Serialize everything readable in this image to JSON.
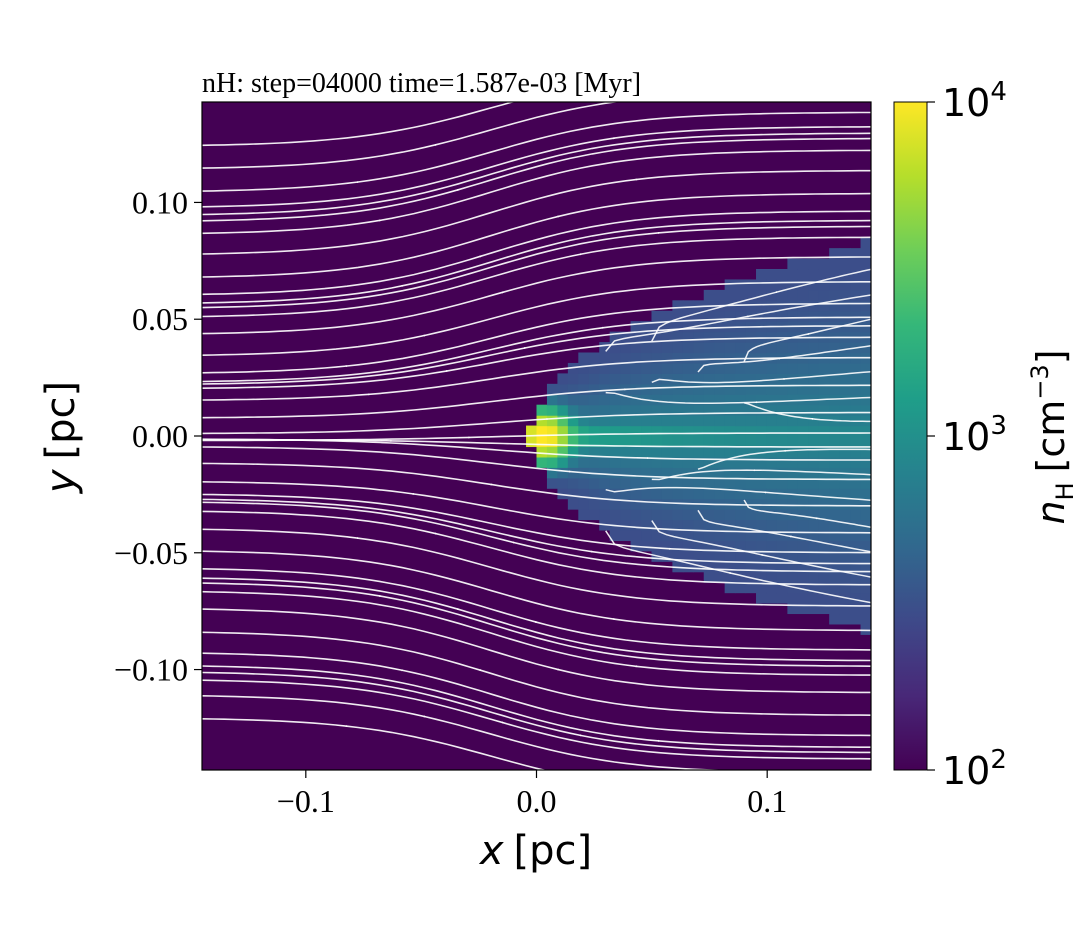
{
  "chart_data": {
    "type": "heatmap",
    "title": "nH: step=04000 time=1.587e-03 [Myr]",
    "xlabel": {
      "main": "x",
      "unit": "[pc]"
    },
    "ylabel": {
      "main": "y",
      "unit": "[pc]"
    },
    "xlim": [
      -0.145,
      0.145
    ],
    "ylim": [
      -0.143,
      0.143
    ],
    "x_ticks": [
      {
        "value": -0.1,
        "label": "−0.1"
      },
      {
        "value": 0.0,
        "label": "0.0"
      },
      {
        "value": 0.1,
        "label": "0.1"
      }
    ],
    "y_ticks": [
      {
        "value": 0.1,
        "label": "0.10"
      },
      {
        "value": 0.05,
        "label": "0.05"
      },
      {
        "value": 0.0,
        "label": "0.00"
      },
      {
        "value": -0.05,
        "label": "−0.05"
      },
      {
        "value": -0.1,
        "label": "−0.10"
      }
    ],
    "colorbar": {
      "label": {
        "main": "n",
        "sub": "H",
        "unit_open": "[cm",
        "unit_exp": "−3",
        "unit_close": "]"
      },
      "scale": "log",
      "range": [
        100,
        10000
      ],
      "ticks": [
        {
          "value": 100,
          "base": "10",
          "exp": "2"
        },
        {
          "value": 1000,
          "base": "10",
          "exp": "3"
        },
        {
          "value": 10000,
          "base": "10",
          "exp": "4"
        }
      ],
      "colormap": [
        "#440154",
        "#482878",
        "#3e4989",
        "#31688e",
        "#26828e",
        "#1f9e89",
        "#35b779",
        "#6ece58",
        "#b5de2b",
        "#fde725"
      ]
    },
    "field": {
      "background_nH": 100,
      "cone": {
        "apex_x": 0.0,
        "half_width_at_xmax": 0.08,
        "nH_edge": 300,
        "nH_axis": 800,
        "extends": "positive-x"
      },
      "core": {
        "x": 0.003,
        "y": 0.0,
        "nH": 10000
      }
    },
    "streamlines": {
      "color": "#ffffff",
      "flow_direction": "positive-x",
      "arrows": true
    }
  }
}
